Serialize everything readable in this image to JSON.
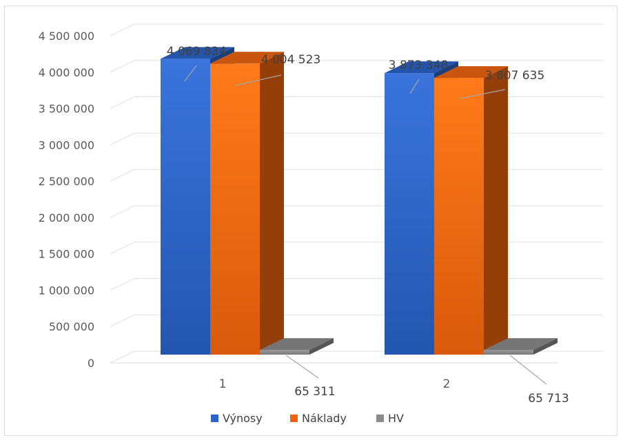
{
  "chart_data": {
    "type": "bar",
    "categories": [
      "1",
      "2"
    ],
    "series": [
      {
        "name": "Výnosy",
        "values": [
          4069834,
          3873348
        ],
        "color": "#2b64c9"
      },
      {
        "name": "Náklady",
        "values": [
          4004523,
          3807635
        ],
        "color": "#ee6410"
      },
      {
        "name": "HV",
        "values": [
          65311,
          65713
        ],
        "color": "#8a8a8a"
      }
    ],
    "data_labels": [
      [
        "4 069 834",
        "3 873 348"
      ],
      [
        "4 004 523",
        "3 807 635"
      ],
      [
        "65 311",
        "65 713"
      ]
    ],
    "y_ticks": [
      0,
      500000,
      1000000,
      1500000,
      2000000,
      2500000,
      3000000,
      3500000,
      4000000,
      4500000
    ],
    "y_tick_labels": [
      "0",
      "500 000",
      "1 000 000",
      "1 500 000",
      "2 000 000",
      "2 500 000",
      "3 000 000",
      "3 500 000",
      "4 000 000",
      "4 500 000"
    ],
    "ylim": [
      0,
      4500000
    ],
    "grid": true,
    "legend_position": "bottom",
    "style": "3d-clustered-column",
    "title": "",
    "xlabel": "",
    "ylabel": ""
  }
}
